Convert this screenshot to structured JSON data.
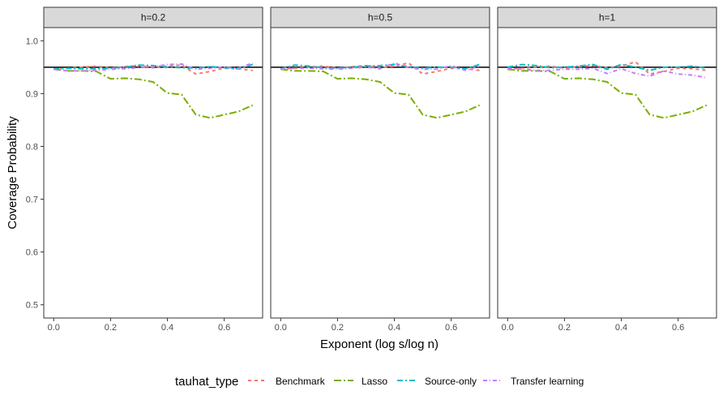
{
  "chart_data": {
    "type": "line",
    "facet_label_prefix": "h=",
    "facets": [
      "0.2",
      "0.5",
      "1"
    ],
    "xlabel": "Exponent (log s/log n)",
    "ylabel": "Coverage Probability",
    "xlim": [
      -0.035,
      0.735
    ],
    "ylim": [
      0.475,
      1.025
    ],
    "x_ticks": [
      0.0,
      0.2,
      0.4,
      0.6
    ],
    "x_tick_labels": [
      "0.0",
      "0.2",
      "0.4",
      "0.6"
    ],
    "y_ticks": [
      0.5,
      0.6,
      0.7,
      0.8,
      0.9,
      1.0
    ],
    "y_tick_labels": [
      "0.5",
      "0.6",
      "0.7",
      "0.8",
      "0.9",
      "1.0"
    ],
    "reference_line": 0.95,
    "legend_title": "tauhat_type",
    "legend_position": "bottom",
    "x": [
      0.0,
      0.05,
      0.1,
      0.15,
      0.2,
      0.25,
      0.3,
      0.35,
      0.4,
      0.45,
      0.5,
      0.55,
      0.6,
      0.65,
      0.7
    ],
    "series": [
      {
        "name": "Benchmark",
        "color": "#F8766D",
        "dash": "4,4",
        "values_by_facet": [
          [
            0.947,
            0.948,
            0.95,
            0.952,
            0.948,
            0.951,
            0.953,
            0.949,
            0.952,
            0.954,
            0.937,
            0.942,
            0.948,
            0.947,
            0.944
          ],
          [
            0.947,
            0.948,
            0.95,
            0.952,
            0.948,
            0.951,
            0.953,
            0.949,
            0.952,
            0.958,
            0.937,
            0.942,
            0.948,
            0.947,
            0.944
          ],
          [
            0.947,
            0.948,
            0.95,
            0.952,
            0.948,
            0.951,
            0.953,
            0.949,
            0.952,
            0.96,
            0.937,
            0.942,
            0.948,
            0.947,
            0.944
          ]
        ]
      },
      {
        "name": "Lasso",
        "color": "#7CAE00",
        "dash": "9,3,2,3",
        "values_by_facet": [
          [
            0.946,
            0.943,
            0.943,
            0.942,
            0.928,
            0.929,
            0.927,
            0.922,
            0.901,
            0.898,
            0.86,
            0.854,
            0.86,
            0.866,
            0.878
          ],
          [
            0.946,
            0.943,
            0.943,
            0.942,
            0.928,
            0.929,
            0.927,
            0.922,
            0.901,
            0.898,
            0.86,
            0.854,
            0.86,
            0.866,
            0.878
          ],
          [
            0.946,
            0.943,
            0.943,
            0.942,
            0.928,
            0.929,
            0.927,
            0.922,
            0.901,
            0.898,
            0.86,
            0.854,
            0.86,
            0.866,
            0.878
          ]
        ]
      },
      {
        "name": "Source-only",
        "color": "#00BFC4",
        "dash": "7,3,2,3",
        "values_by_facet": [
          [
            0.947,
            0.948,
            0.947,
            0.947,
            0.948,
            0.95,
            0.954,
            0.953,
            0.95,
            0.949,
            0.948,
            0.951,
            0.949,
            0.947,
            0.955
          ],
          [
            0.947,
            0.954,
            0.952,
            0.949,
            0.948,
            0.95,
            0.952,
            0.953,
            0.955,
            0.951,
            0.948,
            0.95,
            0.95,
            0.947,
            0.955
          ],
          [
            0.95,
            0.955,
            0.953,
            0.949,
            0.95,
            0.952,
            0.955,
            0.946,
            0.955,
            0.95,
            0.944,
            0.95,
            0.95,
            0.952,
            0.948
          ]
        ]
      },
      {
        "name": "Transfer learning",
        "color": "#C77CFF",
        "dash": "5,3,1,3",
        "values_by_facet": [
          [
            0.946,
            0.943,
            0.943,
            0.944,
            0.946,
            0.947,
            0.949,
            0.951,
            0.955,
            0.956,
            0.946,
            0.948,
            0.95,
            0.948,
            0.958
          ],
          [
            0.946,
            0.948,
            0.948,
            0.947,
            0.946,
            0.948,
            0.95,
            0.947,
            0.958,
            0.949,
            0.946,
            0.946,
            0.953,
            0.944,
            0.952
          ],
          [
            0.948,
            0.946,
            0.944,
            0.944,
            0.946,
            0.946,
            0.948,
            0.938,
            0.947,
            0.938,
            0.933,
            0.943,
            0.937,
            0.935,
            0.93
          ]
        ]
      }
    ]
  }
}
